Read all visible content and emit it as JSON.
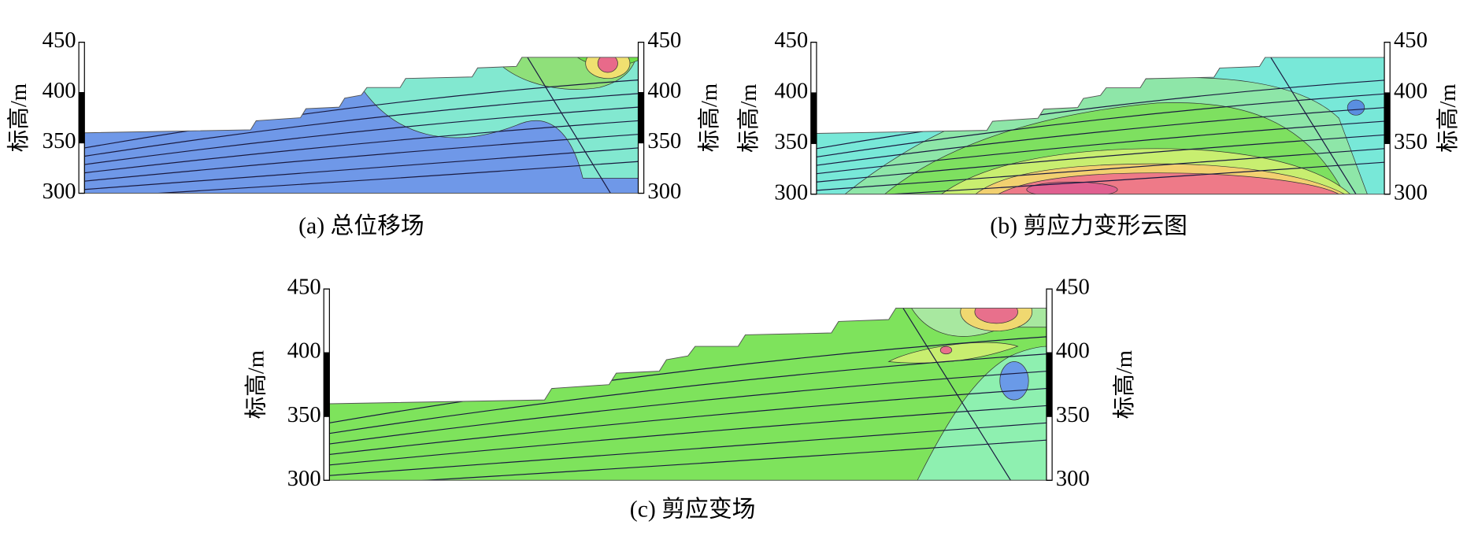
{
  "chart_data": [
    {
      "type": "contour",
      "caption": "(a) 总位移场",
      "ylabel": "标高/m",
      "ylim": [
        300,
        450
      ],
      "yticks": [
        300,
        350,
        400,
        450
      ]
    },
    {
      "type": "contour",
      "caption": "(b) 剪应力变形云图",
      "ylabel": "标高/m",
      "ylim": [
        300,
        450
      ],
      "yticks": [
        300,
        350,
        400,
        450
      ]
    },
    {
      "type": "contour",
      "caption": "(c) 剪应变场",
      "ylabel": "标高/m",
      "ylim": [
        300,
        450
      ],
      "yticks": [
        300,
        350,
        400,
        450
      ]
    }
  ]
}
